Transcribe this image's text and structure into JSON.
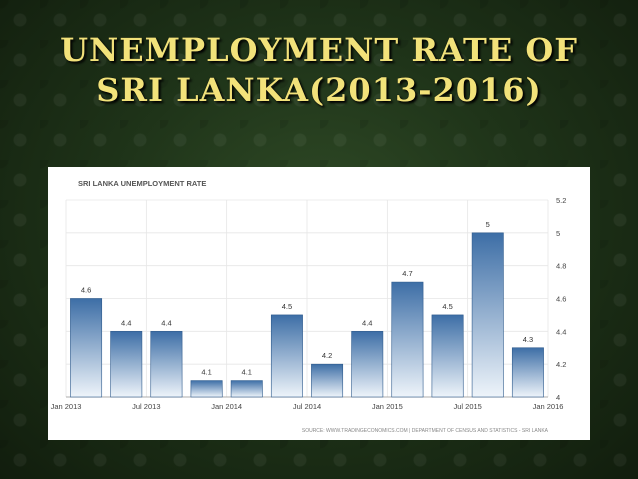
{
  "slide": {
    "title_line1": "UNEMPLOYMENT RATE OF",
    "title_line2": "SRI LANKA(2013-2016)"
  },
  "chart_data": {
    "type": "bar",
    "title": "SRI LANKA UNEMPLOYMENT RATE",
    "source": "SOURCE: WWW.TRADINGECONOMICS.COM  |  DEPARTMENT OF CENSUS AND STATISTICS - SRI LANKA",
    "values": [
      4.6,
      4.4,
      4.4,
      4.1,
      4.1,
      4.5,
      4.2,
      4.4,
      4.7,
      4.5,
      5,
      4.3
    ],
    "value_labels": [
      "4.6",
      "4.4",
      "4.4",
      "4.1",
      "4.1",
      "4.5",
      "4.2",
      "4.4",
      "4.7",
      "4.5",
      "5",
      "4.3"
    ],
    "x_tick_labels": [
      "Jan 2013",
      "Jul 2013",
      "Jan 2014",
      "Jul 2014",
      "Jan 2015",
      "Jul 2015",
      "Jan 2016"
    ],
    "y_tick_labels": [
      "4",
      "4.2",
      "4.4",
      "4.6",
      "4.8",
      "5",
      "5.2"
    ],
    "y_ticks": [
      4,
      4.2,
      4.4,
      4.6,
      4.8,
      5,
      5.2
    ],
    "ylim": [
      4,
      5.2
    ],
    "y_axis_side": "right",
    "grid": true,
    "colors": {
      "bar_top": "#3d6ea6",
      "bar_bottom": "#eef4fa",
      "bar_edge": "#2e5a8c"
    }
  }
}
